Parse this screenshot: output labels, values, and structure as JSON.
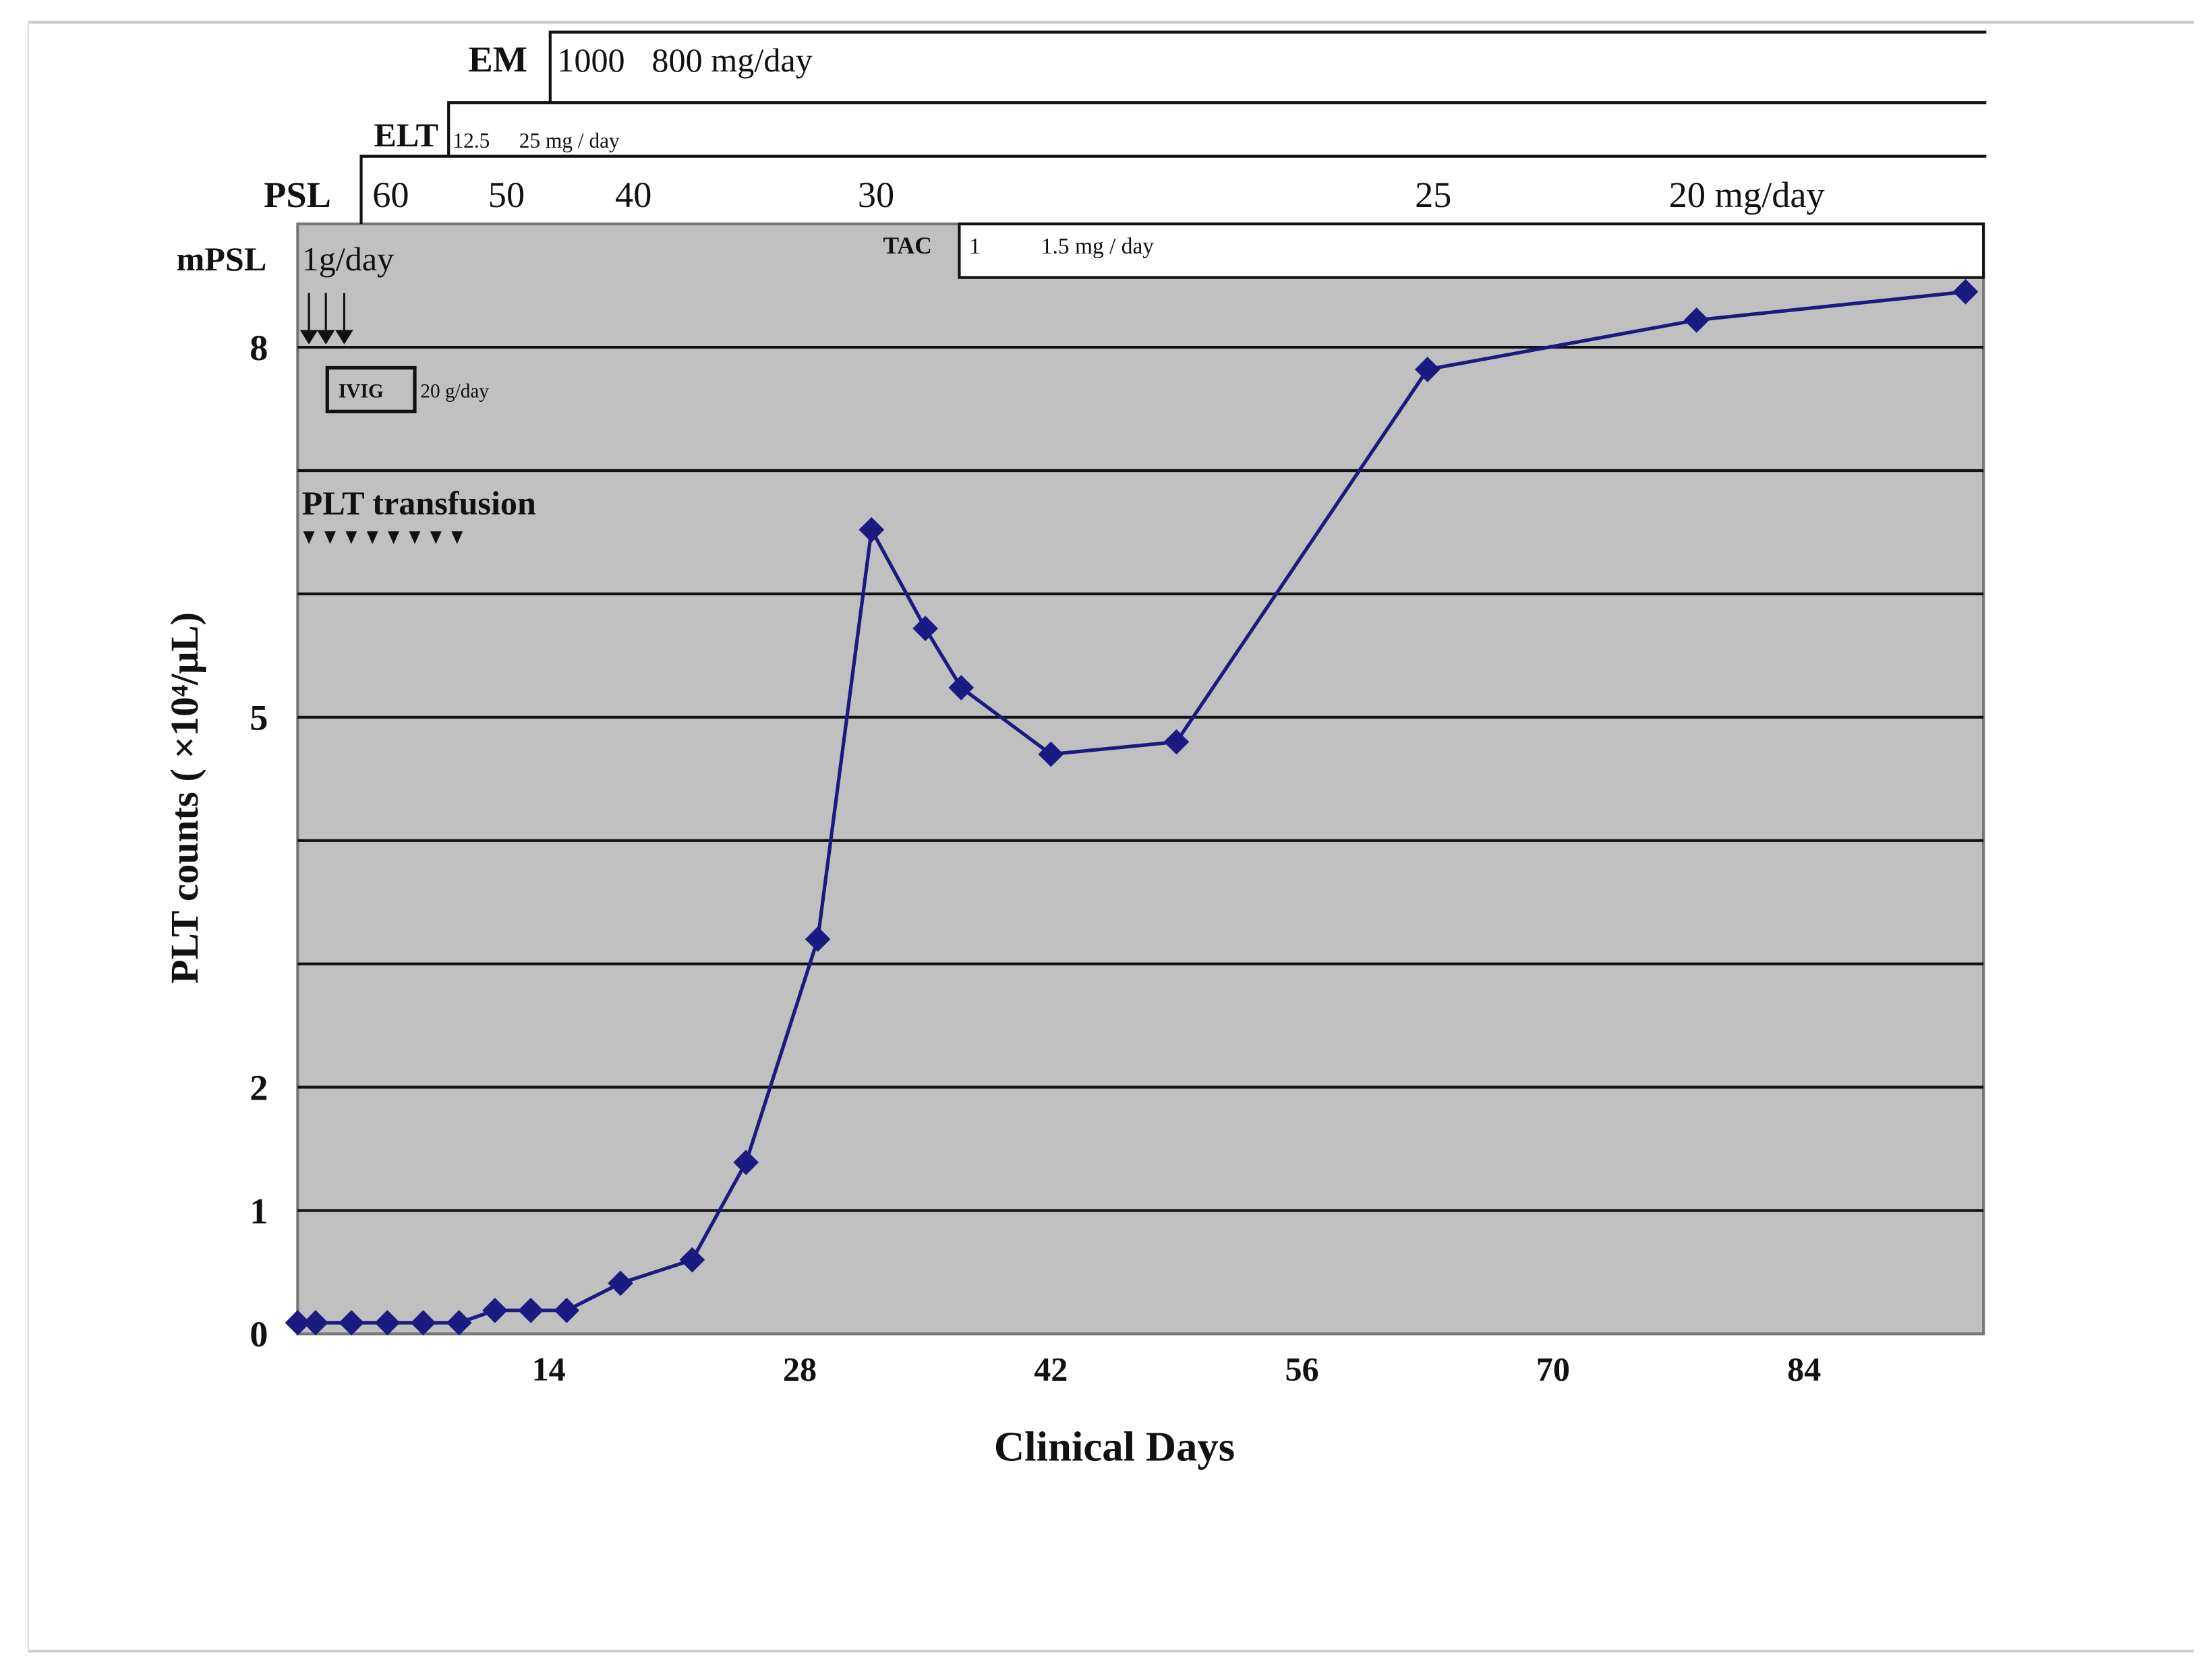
{
  "chart_data": {
    "type": "line",
    "x_label": "Clinical  Days",
    "y_label": "PLT counts ( ×10⁴/μL)",
    "x": [
      0,
      1,
      3,
      5,
      7,
      9,
      11,
      13,
      15,
      18,
      22,
      25,
      29,
      32,
      35,
      37,
      42,
      49,
      63,
      78,
      93
    ],
    "values": [
      0.09,
      0.09,
      0.09,
      0.09,
      0.09,
      0.09,
      0.19,
      0.19,
      0.19,
      0.41,
      0.6,
      1.39,
      3.2,
      6.52,
      5.72,
      5.24,
      4.7,
      4.8,
      7.82,
      8.22,
      8.45
    ],
    "color": "#1a1a80",
    "background": "#c0c0c0",
    "xlim": [
      0,
      94
    ],
    "xticks": [
      14,
      28,
      42,
      56,
      70,
      84
    ],
    "ylim": [
      0,
      9
    ],
    "yticks": [
      0,
      1,
      2,
      5,
      8
    ],
    "ygrid": [
      1,
      2,
      3,
      4,
      5,
      6,
      7,
      8
    ],
    "treatments": {
      "em": {
        "name": "EM",
        "doses": [
          "1000",
          "800 mg/day"
        ]
      },
      "elt": {
        "name": "ELT",
        "doses": [
          "12.5",
          "25 mg / day"
        ]
      },
      "psl": {
        "name": "PSL",
        "doses": [
          "60",
          "50",
          "40",
          "30",
          "25",
          "20 mg/day"
        ]
      },
      "mpsl": {
        "name": "mPSL",
        "doses": [
          "1g/day"
        ]
      },
      "tac": {
        "name": "TAC",
        "doses": [
          "1",
          "1.5 mg / day"
        ]
      },
      "ivig": {
        "name": "IVIG",
        "doses": [
          "20 g/day"
        ]
      },
      "transfusion": {
        "name": "PLT transfusion"
      }
    }
  }
}
